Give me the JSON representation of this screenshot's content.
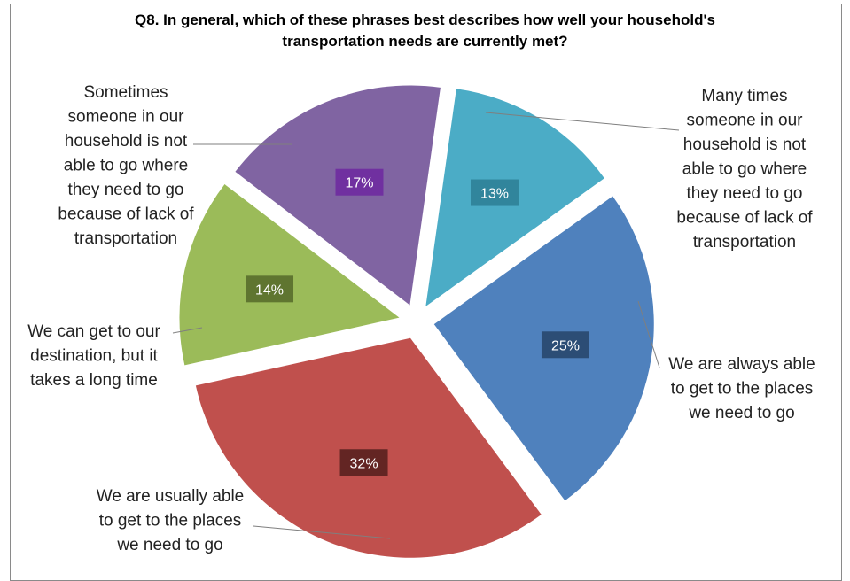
{
  "chart_data": {
    "type": "pie",
    "title": "Q8. In general, which of these phrases best describes how well your household's transportation needs are currently met?",
    "title_lines": [
      "Q8. In general, which of these phrases best describes how well your household's",
      "transportation needs are currently met?"
    ],
    "exploded": true,
    "legend": "none",
    "slices": [
      {
        "label": "Many times someone in our household is not able to go where they need to go because of lack of transportation",
        "label_lines": [
          "Many times",
          "someone in our",
          "household is not",
          "able to go where",
          "they need to go",
          "because of lack of",
          "transportation"
        ],
        "value": 13,
        "display": "13%",
        "color": "#4BACC6",
        "box_color": "#31859C"
      },
      {
        "label": "We are always able to get to the places we need to go",
        "label_lines": [
          "We are always able",
          "to get to the places",
          "we need to go"
        ],
        "value": 25,
        "display": "25%",
        "color": "#4F81BD",
        "box_color": "#2C4D75"
      },
      {
        "label": "We are usually able to get to the places we need to go",
        "label_lines": [
          "We are usually able",
          "to get to the places",
          "we need to go"
        ],
        "value": 32,
        "display": "32%",
        "color": "#C0504D",
        "box_color": "#632523"
      },
      {
        "label": "We can get to our destination, but it takes a long time",
        "label_lines": [
          "We can get to our",
          "destination, but it",
          "takes a long time"
        ],
        "value": 14,
        "display": "14%",
        "color": "#9BBB59",
        "box_color": "#5F7530"
      },
      {
        "label": "Sometimes someone in our household is not able to go where they need to go because of lack of transportation",
        "label_lines": [
          "Sometimes",
          "someone in our",
          "household is not",
          "able to go where",
          "they need to go",
          "because of lack of",
          "transportation"
        ],
        "value": 17,
        "display": "17%",
        "color": "#8064A2",
        "box_color": "#7030A0"
      }
    ]
  }
}
